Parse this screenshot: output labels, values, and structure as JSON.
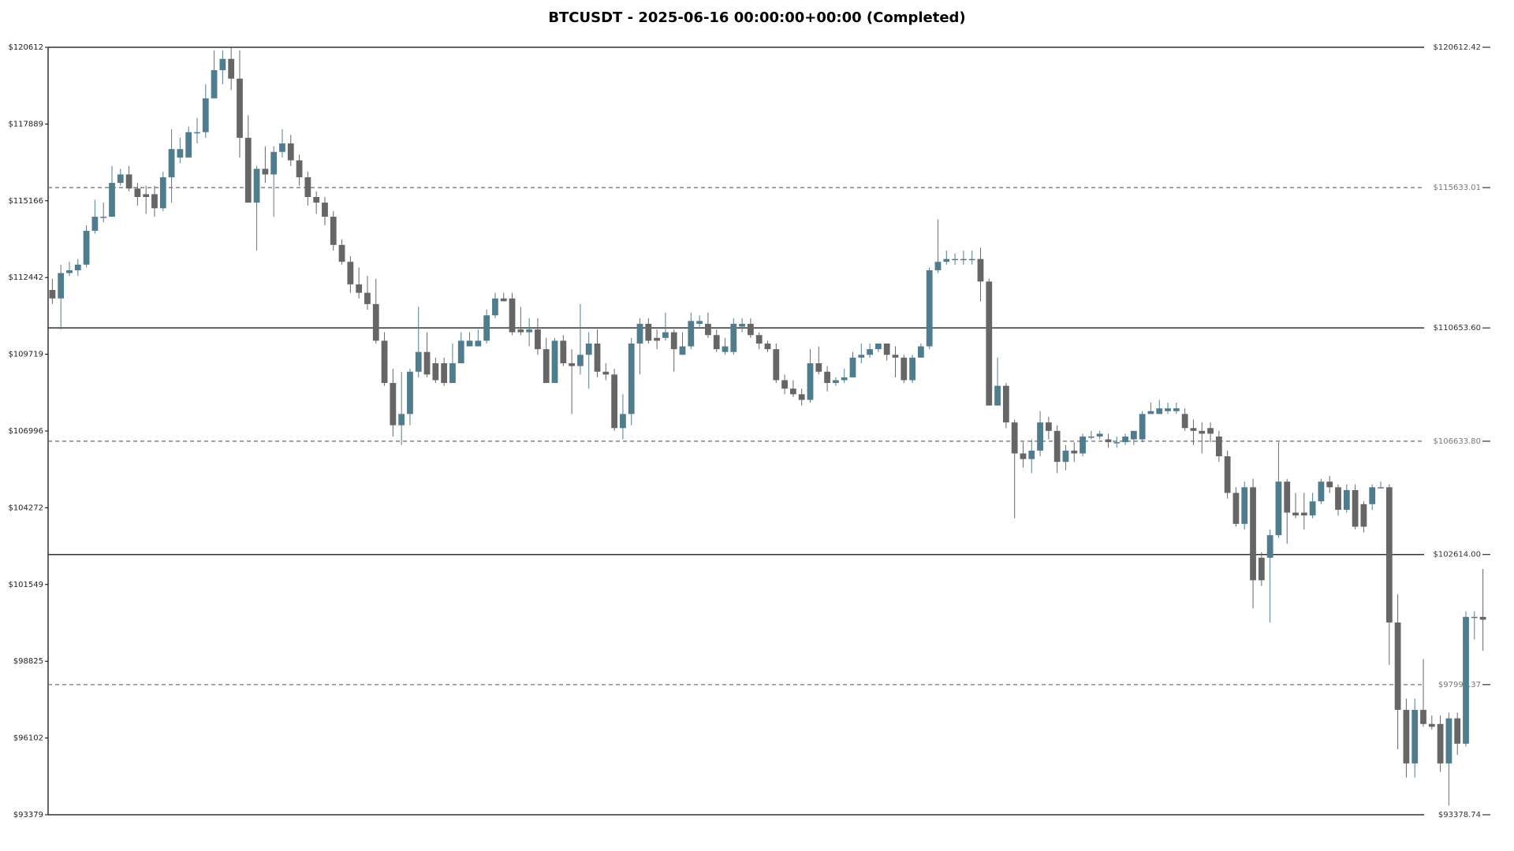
{
  "chart_data": {
    "type": "candlestick",
    "title": "BTCUSDT - 2025-06-16 00:00:00+00:00 (Completed)",
    "up_color": "#4f7d8d",
    "down_color": "#666666",
    "ylim": [
      93378.74,
      120612.42
    ],
    "yticks": [
      {
        "value": 93379,
        "label": "$93379"
      },
      {
        "value": 96102,
        "label": "$96102"
      },
      {
        "value": 98825,
        "label": "$98825"
      },
      {
        "value": 101549,
        "label": "$101549"
      },
      {
        "value": 104272,
        "label": "$104272"
      },
      {
        "value": 106996,
        "label": "$106996"
      },
      {
        "value": 109719,
        "label": "$109719"
      },
      {
        "value": 112442,
        "label": "$112442"
      },
      {
        "value": 115166,
        "label": "$115166"
      },
      {
        "value": 117889,
        "label": "$117889"
      },
      {
        "value": 120612,
        "label": "$120612"
      }
    ],
    "levels": [
      {
        "value": 120612.42,
        "label": "$120612.42",
        "style": "solid"
      },
      {
        "value": 115633.01,
        "label": "$115633.01",
        "style": "dashed"
      },
      {
        "value": 110653.6,
        "label": "$110653.60",
        "style": "solid"
      },
      {
        "value": 106633.8,
        "label": "$106633.80",
        "style": "dashed"
      },
      {
        "value": 102614.0,
        "label": "$102614.00",
        "style": "solid"
      },
      {
        "value": 97996.37,
        "label": "$97996.37",
        "style": "dashed"
      },
      {
        "value": 93378.74,
        "label": "$93378.74",
        "style": "solid"
      }
    ],
    "open": [
      112000,
      111700,
      112600,
      112700,
      112900,
      114100,
      114600,
      114600,
      115800,
      116100,
      115600,
      115400,
      115400,
      114900,
      116000,
      116700,
      116700,
      117600,
      117600,
      118800,
      119800,
      120200,
      119500,
      117400,
      115100,
      116300,
      116100,
      116900,
      117200,
      116600,
      116000,
      115300,
      115100,
      114600,
      113600,
      113000,
      112200,
      111900,
      111500,
      110200,
      108700,
      107200,
      107600,
      109100,
      109800,
      109400,
      109400,
      108700,
      109400,
      110000,
      110000,
      110200,
      111100,
      111700,
      111700,
      110600,
      110500,
      110600,
      109900,
      108700,
      110200,
      109400,
      109300,
      109700,
      110100,
      109100,
      109000,
      107100,
      107600,
      110100,
      110800,
      110300,
      110300,
      110500,
      109700,
      110000,
      110800,
      110800,
      110400,
      109800,
      109800,
      110700,
      110800,
      110400,
      110100,
      109900,
      108800,
      108500,
      108300,
      108100,
      109400,
      109100,
      108700,
      108800,
      108900,
      109600,
      109700,
      109900,
      110100,
      109700,
      109600,
      108800,
      109600,
      110000,
      112700,
      113000,
      113100,
      113100,
      113100,
      113100,
      112300,
      107900,
      108600,
      107300,
      106200,
      106000,
      106300,
      107300,
      107000,
      105900,
      106300,
      106200,
      106800,
      106800,
      106700,
      106600,
      106600,
      106700,
      106700,
      107600,
      107600,
      107700,
      107700,
      107600,
      107100,
      107000,
      107100,
      106800,
      106100,
      104800,
      103700,
      105000,
      102500,
      102500,
      103300,
      105200,
      104100,
      104100,
      104000,
      104500,
      105200,
      105000,
      104200,
      104900,
      104400,
      104400,
      105000,
      105000,
      100200,
      97100,
      95200,
      97100,
      96600,
      96600,
      95200,
      96800,
      95900,
      100400,
      100400
    ],
    "high": [
      112400,
      112900,
      113000,
      113100,
      114300,
      115200,
      115100,
      116400,
      116300,
      116400,
      115800,
      115700,
      115700,
      116200,
      117700,
      117400,
      117800,
      118100,
      119300,
      120500,
      120500,
      120600,
      120500,
      118200,
      116400,
      117100,
      117100,
      117700,
      117500,
      116800,
      116200,
      115500,
      115300,
      114800,
      113800,
      113200,
      112800,
      112500,
      112400,
      110500,
      109200,
      109100,
      109200,
      111400,
      110500,
      109600,
      109600,
      110100,
      110500,
      110500,
      110600,
      111300,
      111900,
      111900,
      111900,
      111400,
      111000,
      111000,
      110300,
      110300,
      110400,
      109900,
      111500,
      110500,
      110600,
      109400,
      109200,
      108300,
      110300,
      111000,
      111000,
      110600,
      111200,
      110600,
      110500,
      111200,
      111100,
      111200,
      110600,
      110300,
      111000,
      111000,
      111000,
      110500,
      110200,
      110100,
      109000,
      108800,
      108500,
      109900,
      110000,
      109300,
      108900,
      109200,
      109800,
      110100,
      110100,
      110100,
      110100,
      110000,
      109700,
      109700,
      110100,
      112800,
      114500,
      113400,
      113300,
      113400,
      113400,
      113500,
      112400,
      109600,
      108700,
      107400,
      106600,
      106700,
      107700,
      107500,
      107200,
      106500,
      106600,
      106900,
      107000,
      107000,
      106900,
      106800,
      106900,
      107000,
      107700,
      108000,
      108100,
      108000,
      108000,
      107800,
      107400,
      107300,
      107300,
      107000,
      106300,
      105000,
      105200,
      105300,
      102700,
      103500,
      106600,
      105300,
      104800,
      104800,
      104800,
      105300,
      105400,
      105100,
      105100,
      105100,
      104500,
      105100,
      105200,
      105100,
      101200,
      97500,
      97500,
      98900,
      96900,
      96900,
      97000,
      97000,
      100600,
      100600,
      102100
    ],
    "low": [
      111500,
      110600,
      112500,
      112500,
      112800,
      114000,
      114400,
      114600,
      115700,
      115500,
      115000,
      114700,
      114600,
      114800,
      115100,
      116500,
      116800,
      117200,
      117400,
      119000,
      119300,
      119100,
      116700,
      115100,
      113400,
      115800,
      114600,
      116700,
      116400,
      115700,
      115000,
      114700,
      114300,
      113400,
      112900,
      111900,
      111700,
      111300,
      110100,
      108600,
      106800,
      106500,
      107200,
      108900,
      108900,
      108700,
      108600,
      108700,
      109400,
      110000,
      110000,
      110100,
      111000,
      111600,
      110400,
      110400,
      110000,
      109700,
      108700,
      108700,
      109300,
      107600,
      109000,
      108500,
      108900,
      108800,
      107000,
      106700,
      107200,
      109000,
      110100,
      109900,
      110200,
      109100,
      109700,
      109900,
      110700,
      110300,
      109800,
      109700,
      109700,
      110500,
      110300,
      109900,
      109800,
      108700,
      108300,
      108200,
      107900,
      108000,
      109000,
      108400,
      108600,
      108700,
      108900,
      109400,
      109600,
      109800,
      109500,
      108900,
      108700,
      108700,
      109600,
      109900,
      112600,
      112900,
      112900,
      112900,
      112900,
      111600,
      107900,
      107900,
      107100,
      103900,
      105700,
      105500,
      106100,
      106700,
      105500,
      105600,
      105900,
      106100,
      106700,
      106700,
      106400,
      106400,
      106500,
      106500,
      106600,
      107600,
      107600,
      107600,
      107600,
      107000,
      106500,
      106200,
      106600,
      105900,
      104600,
      103600,
      103500,
      100700,
      101500,
      100200,
      103200,
      103000,
      103900,
      103500,
      103900,
      104400,
      104800,
      104000,
      104100,
      103500,
      103400,
      104200,
      105000,
      98700,
      95700,
      94700,
      94700,
      96500,
      96400,
      94900,
      93700,
      95500,
      95800,
      99600,
      99200
    ],
    "close": [
      111700,
      112600,
      112700,
      112900,
      114100,
      114600,
      114600,
      115800,
      116100,
      115600,
      115300,
      115300,
      114900,
      116000,
      117000,
      117000,
      117600,
      117600,
      118800,
      119800,
      120200,
      119500,
      117400,
      115100,
      116300,
      116100,
      116900,
      117200,
      116600,
      116000,
      115300,
      115100,
      114600,
      113600,
      113000,
      112200,
      111900,
      111500,
      110200,
      108700,
      107200,
      107600,
      109100,
      109800,
      109000,
      108800,
      108700,
      109400,
      110200,
      110200,
      110200,
      111100,
      111700,
      111600,
      110500,
      110500,
      110600,
      109900,
      108700,
      110200,
      109400,
      109300,
      109700,
      110100,
      109100,
      109000,
      107100,
      107600,
      110100,
      110800,
      110200,
      110200,
      110500,
      109900,
      110000,
      110900,
      110900,
      110400,
      109900,
      110000,
      110800,
      110800,
      110400,
      110100,
      109900,
      108800,
      108500,
      108300,
      108100,
      109400,
      109100,
      108700,
      108800,
      108900,
      109600,
      109700,
      109900,
      110100,
      109700,
      109600,
      108800,
      109600,
      110000,
      112700,
      113000,
      113100,
      113100,
      113100,
      113100,
      112300,
      107900,
      108600,
      107300,
      106200,
      106000,
      106300,
      107300,
      107000,
      105900,
      106300,
      106200,
      106800,
      106800,
      106900,
      106600,
      106600,
      106800,
      107000,
      107600,
      107700,
      107800,
      107800,
      107800,
      107100,
      107000,
      106900,
      106900,
      106100,
      104800,
      103700,
      105000,
      101700,
      101700,
      103300,
      105200,
      104100,
      104000,
      104000,
      104500,
      105200,
      105000,
      104200,
      104900,
      103600,
      103600,
      105000,
      105000,
      100200,
      97100,
      95200,
      97100,
      96600,
      96500,
      95200,
      96800,
      95900,
      100400,
      100400,
      100300
    ]
  }
}
